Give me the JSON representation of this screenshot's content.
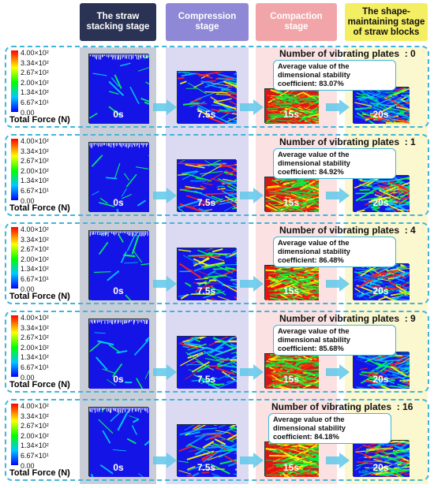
{
  "stages": [
    {
      "label": "The straw stacking stage",
      "bg": "#2b3354",
      "fg": "#ffffff",
      "col": "#c9cdd8"
    },
    {
      "label": "Compression stage",
      "bg": "#8f88d6",
      "fg": "#ffffff",
      "col": "#dcdaf2"
    },
    {
      "label": "Compaction stage",
      "bg": "#f2a5a8",
      "fg": "#ffffff",
      "col": "#fbe1e2"
    },
    {
      "label": "The shape-maintaining stage of straw blocks",
      "bg": "#f3ee62",
      "fg": "#111111",
      "col": "#fbf7cf"
    }
  ],
  "legend": {
    "title": "Total Force (N)",
    "ticks": [
      "4.00×10²",
      "3.34×10²",
      "2.67×10²",
      "2.00×10²",
      "1.34×10²",
      "6.67×10¹",
      "0.00"
    ]
  },
  "times": [
    "0s",
    "7.5s",
    "15s",
    "20s"
  ],
  "plates_prefix": "Number of vibrating plates",
  "stability_prefix": "Average value of the dimensional stability coefficient:",
  "rows": [
    {
      "plates": "0",
      "stability": "83.07%"
    },
    {
      "plates": "1",
      "stability": "84.92%"
    },
    {
      "plates": "4",
      "stability": "86.48%"
    },
    {
      "plates": "9",
      "stability": "85.68%"
    },
    {
      "plates": "16",
      "stability": "84.18%"
    }
  ],
  "colors": {
    "accent": "#3fb6d8",
    "arrow": "#5fc8ea"
  }
}
